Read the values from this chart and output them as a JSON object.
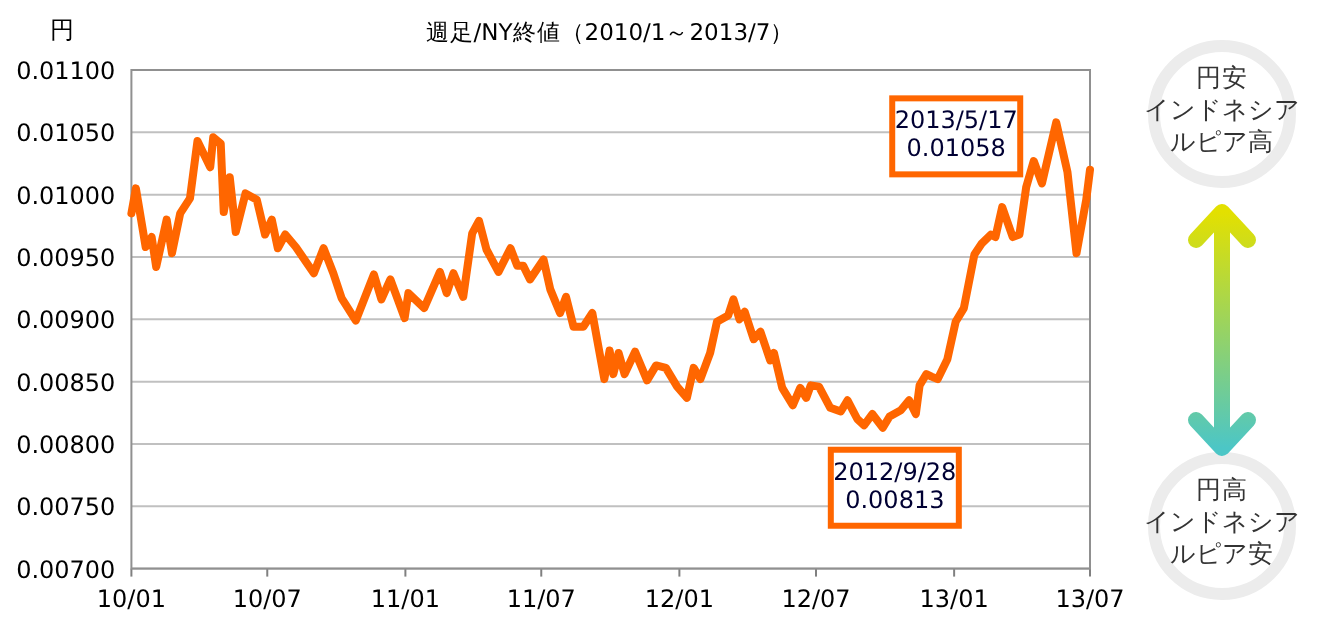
{
  "chart_data": {
    "type": "line",
    "title": "週足/NY終値（2010/1～2013/7）",
    "ylabel": "円",
    "x": [
      "2010-01-01",
      "2010-01-07",
      "2010-01-20",
      "2010-01-28",
      "2010-02-03",
      "2010-02-17",
      "2010-02-24",
      "2010-03-07",
      "2010-03-20",
      "2010-03-30",
      "2010-04-16",
      "2010-04-20",
      "2010-04-30",
      "2010-05-04",
      "2010-05-12",
      "2010-05-20",
      "2010-06-02",
      "2010-06-17",
      "2010-06-28",
      "2010-07-07",
      "2010-07-15",
      "2010-07-25",
      "2010-08-08",
      "2010-09-01",
      "2010-09-14",
      "2010-09-27",
      "2010-10-08",
      "2010-10-27",
      "2010-11-20",
      "2010-11-30",
      "2010-12-12",
      "2010-12-31",
      "2011-01-05",
      "2011-01-26",
      "2011-02-16",
      "2011-02-25",
      "2011-03-06",
      "2011-03-19",
      "2011-03-31",
      "2011-04-09",
      "2011-04-19",
      "2011-05-05",
      "2011-05-21",
      "2011-05-30",
      "2011-06-07",
      "2011-06-16",
      "2011-07-04",
      "2011-07-13",
      "2011-07-26",
      "2011-08-03",
      "2011-08-13",
      "2011-08-26",
      "2011-09-07",
      "2011-09-23",
      "2011-09-30",
      "2011-10-05",
      "2011-10-12",
      "2011-10-20",
      "2011-11-03",
      "2011-11-19",
      "2011-12-01",
      "2011-12-14",
      "2011-12-29",
      "2012-01-11",
      "2012-01-20",
      "2012-01-29",
      "2012-02-11",
      "2012-02-20",
      "2012-03-06",
      "2012-03-13",
      "2012-03-21",
      "2012-03-28",
      "2012-04-09",
      "2012-04-18",
      "2012-05-01",
      "2012-05-06",
      "2012-05-17",
      "2012-05-31",
      "2012-06-10",
      "2012-06-18",
      "2012-06-24",
      "2012-07-05",
      "2012-07-20",
      "2012-08-03",
      "2012-08-12",
      "2012-08-25",
      "2012-09-03",
      "2012-09-14",
      "2012-09-28",
      "2012-10-07",
      "2012-10-22",
      "2012-11-02",
      "2012-11-11",
      "2012-11-16",
      "2012-11-25",
      "2012-12-02",
      "2012-12-10",
      "2012-12-23",
      "2013-01-03",
      "2013-01-14",
      "2013-01-28",
      "2013-02-07",
      "2013-02-19",
      "2013-02-25",
      "2013-03-06",
      "2013-03-20",
      "2013-03-29",
      "2013-04-07",
      "2013-04-17",
      "2013-04-28",
      "2013-05-17",
      "2013-06-01",
      "2013-06-13",
      "2013-06-26",
      "2013-07-01"
    ],
    "series": [
      {
        "color": "#ff6600",
        "values": [
          0.00985,
          0.01005,
          0.00958,
          0.00966,
          0.00942,
          0.0098,
          0.00953,
          0.00985,
          0.00997,
          0.01043,
          0.01022,
          0.01046,
          0.01041,
          0.00986,
          0.01014,
          0.0097,
          0.01001,
          0.00996,
          0.00968,
          0.0098,
          0.00957,
          0.00968,
          0.00958,
          0.00937,
          0.00957,
          0.00937,
          0.00917,
          0.00899,
          0.00936,
          0.00916,
          0.00932,
          0.00901,
          0.00921,
          0.00909,
          0.00938,
          0.00921,
          0.00937,
          0.00918,
          0.00969,
          0.00979,
          0.00956,
          0.00938,
          0.00957,
          0.00943,
          0.00943,
          0.00932,
          0.00948,
          0.00924,
          0.00905,
          0.00918,
          0.00894,
          0.00894,
          0.00905,
          0.00852,
          0.00875,
          0.00856,
          0.00873,
          0.00856,
          0.00874,
          0.00851,
          0.00863,
          0.00861,
          0.00846,
          0.00837,
          0.00861,
          0.00852,
          0.00873,
          0.00898,
          0.00903,
          0.00916,
          0.009,
          0.00906,
          0.00884,
          0.0089,
          0.00867,
          0.00873,
          0.00845,
          0.00831,
          0.00845,
          0.00837,
          0.00847,
          0.00846,
          0.00829,
          0.00826,
          0.00835,
          0.0082,
          0.00815,
          0.00824,
          0.00813,
          0.00822,
          0.00827,
          0.00835,
          0.00824,
          0.00847,
          0.00856,
          0.00854,
          0.00852,
          0.00868,
          0.00898,
          0.00909,
          0.00952,
          0.00961,
          0.00968,
          0.00966,
          0.0099,
          0.00966,
          0.00968,
          0.01006,
          0.01027,
          0.01009,
          0.01058,
          0.01018,
          0.00953,
          0.00996,
          0.0102
        ]
      }
    ],
    "xlim": [
      "2010-01-01",
      "2013-07-01"
    ],
    "xticks": [
      {
        "value": "2010-01-01",
        "label": "10/01"
      },
      {
        "value": "2010-07-01",
        "label": "10/07"
      },
      {
        "value": "2011-01-01",
        "label": "11/01"
      },
      {
        "value": "2011-07-01",
        "label": "11/07"
      },
      {
        "value": "2012-01-01",
        "label": "12/01"
      },
      {
        "value": "2012-07-01",
        "label": "12/07"
      },
      {
        "value": "2013-01-01",
        "label": "13/01"
      },
      {
        "value": "2013-07-01",
        "label": "13/07"
      }
    ],
    "ylim": [
      0.007,
      0.011
    ],
    "yticks": [
      {
        "value": 0.007,
        "label": "0.00700"
      },
      {
        "value": 0.0075,
        "label": "0.00750"
      },
      {
        "value": 0.008,
        "label": "0.00800"
      },
      {
        "value": 0.0085,
        "label": "0.00850"
      },
      {
        "value": 0.009,
        "label": "0.00900"
      },
      {
        "value": 0.0095,
        "label": "0.00950"
      },
      {
        "value": 0.01,
        "label": "0.01000"
      },
      {
        "value": 0.0105,
        "label": "0.01050"
      },
      {
        "value": 0.011,
        "label": "0.01100"
      }
    ],
    "grid": "y",
    "marker": "none",
    "line_style": "solid",
    "annotations": [
      {
        "text": "2013/5/17 0.01058",
        "x": "2013-05-17",
        "y": 0.01058
      },
      {
        "text": "2012/9/28 0.00813",
        "x": "2012-09-28",
        "y": 0.00813
      },
      "円安インドネシアルピア高",
      "円高インドネシアルピア安"
    ]
  }
}
